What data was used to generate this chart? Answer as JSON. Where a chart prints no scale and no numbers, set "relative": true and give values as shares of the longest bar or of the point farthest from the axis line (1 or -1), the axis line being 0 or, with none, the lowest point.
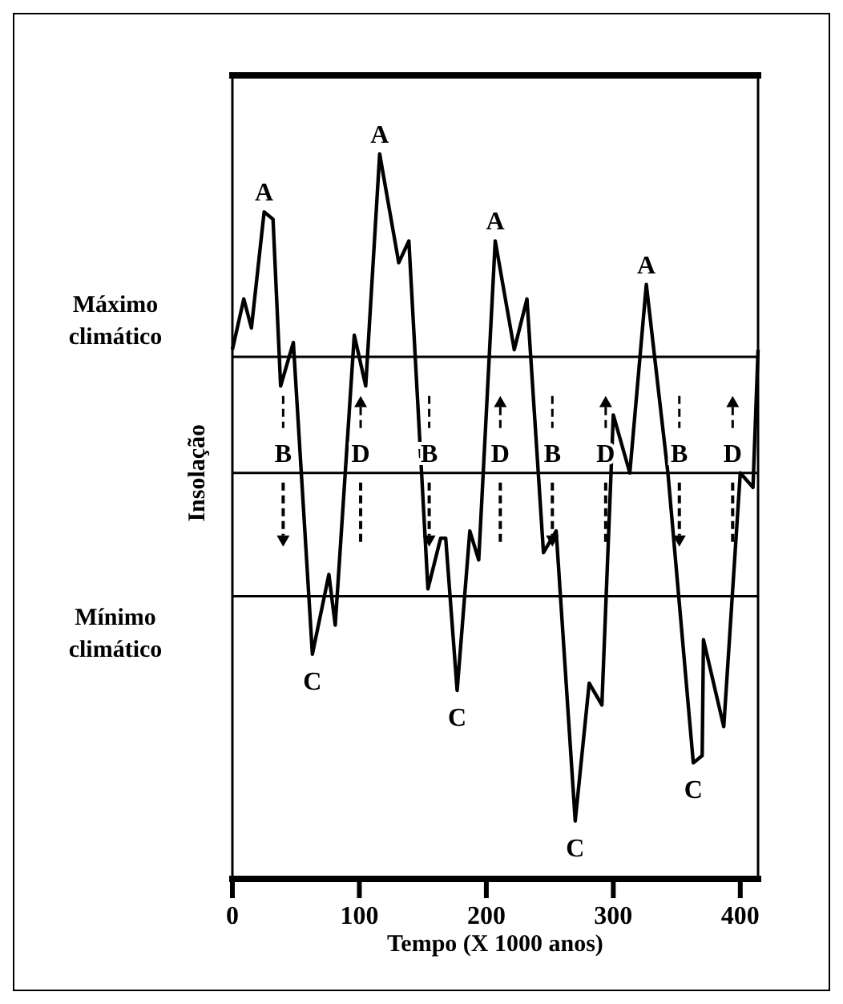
{
  "chart_data": {
    "type": "line",
    "relative": true,
    "xlabel": "Tempo (X 1000 anos)",
    "ylabel": "Insolação",
    "x": [
      0,
      9,
      15,
      25,
      32,
      38,
      48,
      63,
      76,
      81,
      96,
      105,
      116,
      131,
      139,
      154,
      164,
      168,
      177,
      187,
      194,
      207,
      222,
      232,
      245,
      255,
      270,
      281,
      291,
      300,
      313,
      326,
      343,
      363,
      370,
      371,
      387,
      400,
      410,
      414
    ],
    "series": [
      {
        "color": "#000000",
        "values": [
          0.73,
          0.8,
          0.76,
          0.92,
          0.91,
          0.68,
          0.74,
          0.31,
          0.42,
          0.35,
          0.75,
          0.68,
          1.0,
          0.85,
          0.88,
          0.4,
          0.47,
          0.47,
          0.26,
          0.48,
          0.44,
          0.88,
          0.73,
          0.8,
          0.45,
          0.48,
          0.08,
          0.27,
          0.24,
          0.64,
          0.56,
          0.82,
          0.56,
          0.16,
          0.17,
          0.33,
          0.21,
          0.56,
          0.54,
          0.73
        ]
      }
    ],
    "xlim": [
      0,
      414
    ],
    "xticks": [
      0,
      100,
      200,
      300,
      400
    ],
    "marker": "none",
    "line_style": "solid",
    "ref_lines": [
      {
        "axis": "y",
        "value": 0.72,
        "label": "Máximo climático",
        "color": "#000000"
      },
      {
        "axis": "y",
        "value": 0.56,
        "label": null,
        "color": "#000000"
      },
      {
        "axis": "y",
        "value": 0.39,
        "label": "Mínimo climático",
        "color": "#000000"
      }
    ],
    "annotations": [
      {
        "text": "A",
        "x": 25,
        "y": 0.92
      },
      {
        "text": "B",
        "x": 40,
        "y": 0.56
      },
      {
        "text": "C",
        "x": 63,
        "y": 0.31
      },
      {
        "text": "D",
        "x": 101,
        "y": 0.56
      },
      {
        "text": "A",
        "x": 116,
        "y": 1.0
      },
      {
        "text": "B",
        "x": 155,
        "y": 0.56
      },
      {
        "text": "C",
        "x": 177,
        "y": 0.26
      },
      {
        "text": "D",
        "x": 211,
        "y": 0.56
      },
      {
        "text": "A",
        "x": 207,
        "y": 0.88
      },
      {
        "text": "B",
        "x": 252,
        "y": 0.56
      },
      {
        "text": "C",
        "x": 270,
        "y": 0.08
      },
      {
        "text": "D",
        "x": 294,
        "y": 0.56
      },
      {
        "text": "A",
        "x": 326,
        "y": 0.82
      },
      {
        "text": "B",
        "x": 352,
        "y": 0.56
      },
      {
        "text": "C",
        "x": 363,
        "y": 0.16
      },
      {
        "text": "D",
        "x": 394,
        "y": 0.56
      }
    ]
  }
}
